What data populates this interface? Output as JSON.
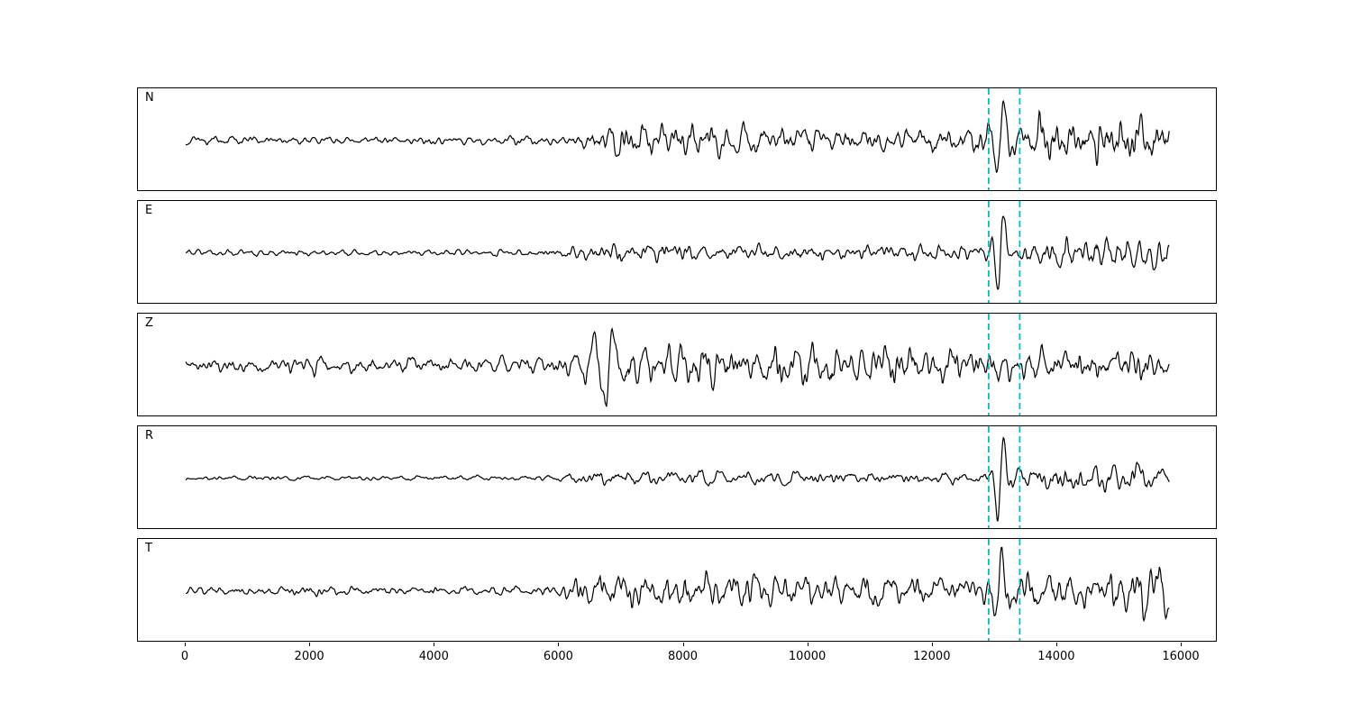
{
  "figure": {
    "background": "#ffffff",
    "panel_border_color": "#000000",
    "trace_color": "#000000",
    "pick_line_color": "#00bfc8",
    "tick_label_color": "#000000"
  },
  "chart_data": {
    "type": "line",
    "subtype": "seismogram-multipanel-waveforms",
    "title": "",
    "xlabel": "",
    "ylabel": "",
    "grid": false,
    "legend": false,
    "x_ticks": [
      0,
      2000,
      4000,
      6000,
      8000,
      10000,
      12000,
      14000,
      16000
    ],
    "x_data_range": [
      0,
      15800
    ],
    "x_axis_range": [
      -770,
      16600
    ],
    "pick_lines_x": [
      12900,
      13400
    ],
    "pick_line_style": "dashed",
    "panels": [
      {
        "label": "N",
        "seed": 11,
        "envelope": [
          [
            0,
            0.1
          ],
          [
            5500,
            0.11
          ],
          [
            6300,
            0.14
          ],
          [
            6600,
            0.4
          ],
          [
            7200,
            0.42
          ],
          [
            8200,
            0.38
          ],
          [
            10000,
            0.36
          ],
          [
            12500,
            0.34
          ],
          [
            13300,
            0.38
          ],
          [
            13700,
            0.5
          ],
          [
            14500,
            0.6
          ],
          [
            15100,
            0.62
          ],
          [
            15800,
            0.5
          ]
        ],
        "events": [
          {
            "x": 13090,
            "halfwidth": 110,
            "amp": 0.95,
            "period": 240
          }
        ]
      },
      {
        "label": "E",
        "seed": 23,
        "envelope": [
          [
            0,
            0.07
          ],
          [
            5800,
            0.08
          ],
          [
            6400,
            0.22
          ],
          [
            7000,
            0.24
          ],
          [
            8500,
            0.2
          ],
          [
            11000,
            0.18
          ],
          [
            12800,
            0.2
          ],
          [
            13300,
            0.26
          ],
          [
            14000,
            0.34
          ],
          [
            14800,
            0.4
          ],
          [
            15500,
            0.36
          ],
          [
            15800,
            0.3
          ]
        ],
        "events": [
          {
            "x": 13090,
            "halfwidth": 100,
            "amp": 0.95,
            "period": 230
          }
        ]
      },
      {
        "label": "Z",
        "seed": 37,
        "envelope": [
          [
            0,
            0.18
          ],
          [
            5000,
            0.19
          ],
          [
            6200,
            0.24
          ],
          [
            6600,
            0.6
          ],
          [
            6900,
            0.62
          ],
          [
            7300,
            0.5
          ],
          [
            8000,
            0.52
          ],
          [
            9500,
            0.5
          ],
          [
            11500,
            0.5
          ],
          [
            13500,
            0.46
          ],
          [
            15000,
            0.44
          ],
          [
            15800,
            0.36
          ]
        ],
        "events": [
          {
            "x": 6800,
            "halfwidth": 160,
            "amp": 0.9,
            "period": 300
          }
        ]
      },
      {
        "label": "R",
        "seed": 41,
        "envelope": [
          [
            0,
            0.06
          ],
          [
            6000,
            0.07
          ],
          [
            6500,
            0.18
          ],
          [
            7200,
            0.2
          ],
          [
            8500,
            0.17
          ],
          [
            11000,
            0.15
          ],
          [
            12800,
            0.17
          ],
          [
            13300,
            0.24
          ],
          [
            13900,
            0.32
          ],
          [
            14800,
            0.38
          ],
          [
            15400,
            0.34
          ],
          [
            15800,
            0.26
          ]
        ],
        "events": [
          {
            "x": 13090,
            "halfwidth": 100,
            "amp": 0.95,
            "period": 220
          }
        ]
      },
      {
        "label": "T",
        "seed": 53,
        "envelope": [
          [
            0,
            0.1
          ],
          [
            5600,
            0.12
          ],
          [
            6300,
            0.3
          ],
          [
            6700,
            0.46
          ],
          [
            7400,
            0.38
          ],
          [
            9000,
            0.4
          ],
          [
            11000,
            0.38
          ],
          [
            12600,
            0.36
          ],
          [
            13300,
            0.42
          ],
          [
            14000,
            0.5
          ],
          [
            14800,
            0.62
          ],
          [
            15300,
            0.6
          ],
          [
            15800,
            0.48
          ]
        ],
        "events": [
          {
            "x": 13060,
            "halfwidth": 110,
            "amp": 0.95,
            "period": 250
          }
        ]
      }
    ]
  }
}
